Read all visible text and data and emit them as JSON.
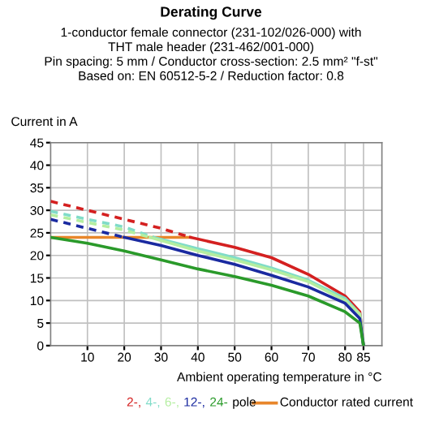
{
  "chart_data": {
    "type": "line",
    "title": "Derating Curve",
    "subtitle": "1-conductor female connector (231-102/026-000) with\nTHT male header (231-462/001-000)\nPin spacing: 5 mm / Conductor cross-section: 2.5 mm² \"f-st\"\nBased on: EN 60512-5-2 / Reduction factor: 0.8",
    "xlabel": "Ambient operating temperature in °C",
    "ylabel": "Current in A",
    "annotations": [
      "pole"
    ],
    "series": [
      {
        "name": "Conductor rated current",
        "color": "#e8862a",
        "x": [
          0,
          38
        ],
        "values": [
          24,
          24
        ]
      },
      {
        "color": "#d42020",
        "x": [
          0,
          10,
          20,
          30,
          38
        ],
        "values": [
          32,
          30,
          28,
          26,
          24
        ],
        "line_style": "dashed"
      },
      {
        "name": "2-,",
        "color": "#d42020",
        "x": [
          38,
          50,
          60,
          70,
          80,
          84,
          85
        ],
        "values": [
          24,
          21.8,
          19.5,
          15.8,
          11,
          7.5,
          0
        ]
      },
      {
        "color": "#80dcc8",
        "x": [
          0,
          10,
          20,
          28
        ],
        "values": [
          29.8,
          28,
          26.3,
          24
        ],
        "line_style": "dashed"
      },
      {
        "name": "4-,",
        "color": "#80dcc8",
        "x": [
          28,
          40,
          50,
          60,
          70,
          80,
          84,
          85
        ],
        "values": [
          24,
          21.5,
          19.5,
          17.2,
          14.5,
          10.5,
          7,
          0
        ]
      },
      {
        "color": "#b4eea0",
        "x": [
          0,
          10,
          20,
          27
        ],
        "values": [
          29,
          27.3,
          25.6,
          24
        ],
        "line_style": "dashed"
      },
      {
        "name": "6-,",
        "color": "#b4eea0",
        "x": [
          27,
          40,
          50,
          60,
          70,
          80,
          84,
          85
        ],
        "values": [
          24,
          21,
          19,
          16.8,
          14.2,
          10,
          7,
          0
        ]
      },
      {
        "color": "#1a2aa0",
        "x": [
          0,
          10,
          20
        ],
        "values": [
          28,
          26,
          24
        ],
        "line_style": "dashed"
      },
      {
        "name": "12-,",
        "color": "#1a2aa0",
        "x": [
          20,
          30,
          40,
          50,
          60,
          70,
          80,
          84,
          85
        ],
        "values": [
          24,
          22.2,
          20,
          18,
          15.6,
          13,
          9.4,
          6,
          0
        ]
      },
      {
        "name": "24-",
        "color": "#2a9a2a",
        "x": [
          0,
          10,
          20,
          30,
          40,
          50,
          60,
          70,
          80,
          84,
          85
        ],
        "values": [
          24,
          22.7,
          21,
          19,
          17,
          15.3,
          13.4,
          11,
          7.5,
          5,
          0
        ]
      }
    ],
    "xlim": [
      0,
      90
    ],
    "xticks": [
      10,
      20,
      30,
      40,
      50,
      60,
      70,
      80,
      85
    ],
    "ylim": [
      0,
      45
    ],
    "yticks": [
      0,
      5,
      10,
      15,
      20,
      25,
      30,
      35,
      40,
      45
    ],
    "grid": true,
    "legend": "bottom",
    "line_style": "solid"
  }
}
